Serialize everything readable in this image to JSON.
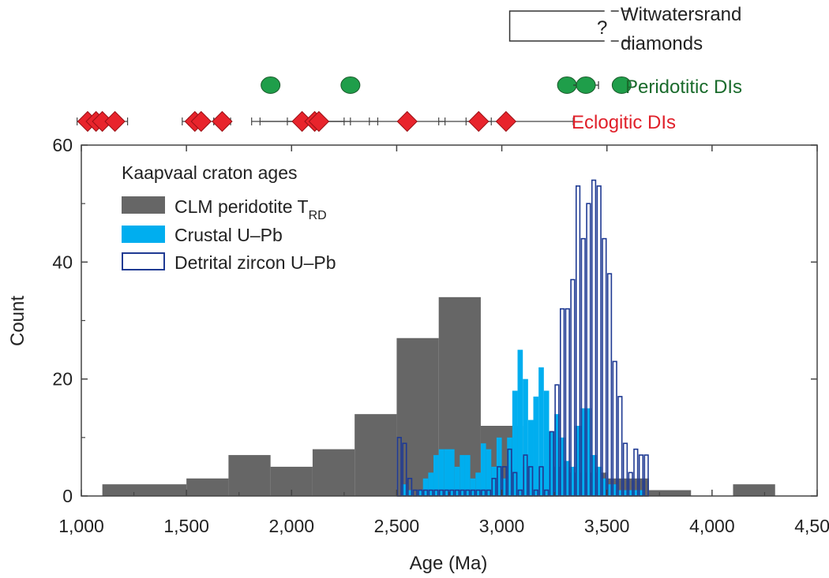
{
  "chart_data": {
    "type": "bar",
    "title": "",
    "xlabel": "Age (Ma)",
    "ylabel": "Count",
    "xlim": [
      1000,
      4500
    ],
    "ylim": [
      0,
      60
    ],
    "xticks": [
      1000,
      1500,
      2000,
      2500,
      3000,
      3500,
      4000,
      4500
    ],
    "xtick_labels": [
      "1,000",
      "1,500",
      "2,000",
      "2,500",
      "3,000",
      "3,500",
      "4,000",
      "4,500"
    ],
    "yticks": [
      0,
      20,
      40,
      60
    ],
    "ytick_labels": [
      "0",
      "20",
      "40",
      "60"
    ],
    "legend": {
      "title": "Kaapvaal craton ages",
      "entries": [
        {
          "label": "CLM peridotite T",
          "subscript": "RD",
          "color": "#666666",
          "style": "filled"
        },
        {
          "label": "Crustal U–Pb",
          "color": "#00aeef",
          "style": "filled"
        },
        {
          "label": "Detrital zircon U–Pb",
          "color": "#1f3a93",
          "style": "outline"
        }
      ]
    },
    "series": [
      {
        "name": "CLM peridotite TRD",
        "color": "#666666",
        "bins": [
          {
            "x0": 1100,
            "x1": 1500,
            "count": 2
          },
          {
            "x0": 1500,
            "x1": 1700,
            "count": 3
          },
          {
            "x0": 1700,
            "x1": 1900,
            "count": 7
          },
          {
            "x0": 1900,
            "x1": 2100,
            "count": 5
          },
          {
            "x0": 2100,
            "x1": 2300,
            "count": 8
          },
          {
            "x0": 2300,
            "x1": 2500,
            "count": 14
          },
          {
            "x0": 2500,
            "x1": 2700,
            "count": 27
          },
          {
            "x0": 2700,
            "x1": 2900,
            "count": 34
          },
          {
            "x0": 2900,
            "x1": 3100,
            "count": 12
          },
          {
            "x0": 3100,
            "x1": 3300,
            "count": 5
          },
          {
            "x0": 3300,
            "x1": 3500,
            "count": 4
          },
          {
            "x0": 3500,
            "x1": 3700,
            "count": 3
          },
          {
            "x0": 3700,
            "x1": 3900,
            "count": 1
          },
          {
            "x0": 4100,
            "x1": 4300,
            "count": 2
          }
        ]
      },
      {
        "name": "Crustal U–Pb",
        "color": "#00aeef",
        "bin_width": 25,
        "start": 2525,
        "counts": [
          2,
          1,
          0,
          1,
          3,
          4,
          7,
          8,
          8,
          8,
          5,
          7,
          7,
          3,
          4,
          9,
          8,
          5,
          10,
          3,
          10,
          18,
          25,
          20,
          13,
          17,
          22,
          18,
          11,
          14,
          10,
          6,
          5,
          12,
          15,
          15,
          7,
          5,
          3,
          2,
          2,
          1,
          1,
          1,
          1,
          1
        ]
      },
      {
        "name": "Detrital zircon U–Pb",
        "color": "#1f3a93",
        "bin_width": 25,
        "start": 2500,
        "counts": [
          10,
          9,
          3,
          1,
          1,
          1,
          1,
          1,
          1,
          1,
          1,
          1,
          1,
          1,
          1,
          1,
          1,
          1,
          3,
          5,
          5,
          8,
          4,
          1,
          7,
          5,
          1,
          5,
          1,
          11,
          19,
          32,
          32,
          37,
          53,
          44,
          50,
          54,
          53,
          44,
          38,
          23,
          17,
          9,
          4,
          8,
          7,
          7
        ]
      }
    ],
    "top_panel": {
      "witwatersrand": {
        "label_line1": "Witwatersrand",
        "label_line2": "diamonds",
        "marker": "?",
        "range": [
          3000,
          3500
        ]
      },
      "peridotitic": {
        "label": "Peridotitic DIs",
        "color": "#1f9e4a",
        "points": [
          {
            "x": 1900,
            "err": 0
          },
          {
            "x": 2280,
            "err": 0
          },
          {
            "x": 3310,
            "err": 0
          },
          {
            "x": 3400,
            "err": 60
          },
          {
            "x": 3570,
            "err": 0
          }
        ]
      },
      "eclogitic": {
        "label": "Eclogitic DIs",
        "color": "#e8242c",
        "points": [
          {
            "x": 1030,
            "err": 50
          },
          {
            "x": 1070,
            "err": 40
          },
          {
            "x": 1100,
            "err": 30
          },
          {
            "x": 1160,
            "err": 60
          },
          {
            "x": 1540,
            "err": 60
          },
          {
            "x": 1570,
            "err": 60
          },
          {
            "x": 1670,
            "err": 40
          },
          {
            "x": 2050,
            "err": 200
          },
          {
            "x": 2110,
            "err": 300
          },
          {
            "x": 2130,
            "err": 150
          },
          {
            "x": 2550,
            "err": 180
          },
          {
            "x": 2890,
            "err": 60
          },
          {
            "x": 3020,
            "err": 320
          }
        ]
      }
    }
  }
}
